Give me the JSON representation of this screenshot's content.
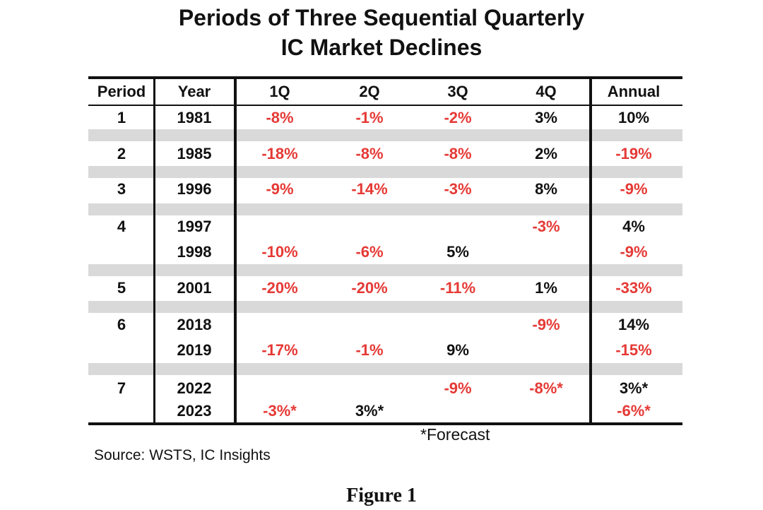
{
  "title": {
    "line1": "Periods of Three Sequential Quarterly",
    "line2": "IC Market Declines"
  },
  "table": {
    "headers": [
      "Period",
      "Year",
      "1Q",
      "2Q",
      "3Q",
      "4Q",
      "Annual"
    ],
    "rows": [
      {
        "period": "1",
        "year": "1981",
        "q1": "-8%",
        "q2": "-1%",
        "q3": "-2%",
        "q4": "3%",
        "annual": "10%"
      },
      {
        "period": "2",
        "year": "1985",
        "q1": "-18%",
        "q2": "-8%",
        "q3": "-8%",
        "q4": "2%",
        "annual": "-19%"
      },
      {
        "period": "3",
        "year": "1996",
        "q1": "-9%",
        "q2": "-14%",
        "q3": "-3%",
        "q4": "8%",
        "annual": "-9%"
      },
      {
        "period": "4",
        "year": "1997",
        "q1": "",
        "q2": "",
        "q3": "",
        "q4": "-3%",
        "annual": "4%"
      },
      {
        "period": "",
        "year": "1998",
        "q1": "-10%",
        "q2": "-6%",
        "q3": "5%",
        "q4": "",
        "annual": "-9%"
      },
      {
        "period": "5",
        "year": "2001",
        "q1": "-20%",
        "q2": "-20%",
        "q3": "-11%",
        "q4": "1%",
        "annual": "-33%"
      },
      {
        "period": "6",
        "year": "2018",
        "q1": "",
        "q2": "",
        "q3": "",
        "q4": "-9%",
        "annual": "14%"
      },
      {
        "period": "",
        "year": "2019",
        "q1": "-17%",
        "q2": "-1%",
        "q3": "9%",
        "q4": "",
        "annual": "-15%"
      },
      {
        "period": "7",
        "year": "2022",
        "q1": "",
        "q2": "",
        "q3": "-9%",
        "q4": "-8%*",
        "annual": "3%*"
      },
      {
        "period": "",
        "year": "2023",
        "q1": "-3%*",
        "q2": "3%*",
        "q3": "",
        "q4": "",
        "annual": "-6%*"
      }
    ]
  },
  "colors": {
    "negative": "#e53935",
    "positive": "#111111",
    "band": "#d9d9d9"
  },
  "footnote": "*Forecast",
  "source": "Source: WSTS, IC Insights",
  "caption": "Figure 1"
}
